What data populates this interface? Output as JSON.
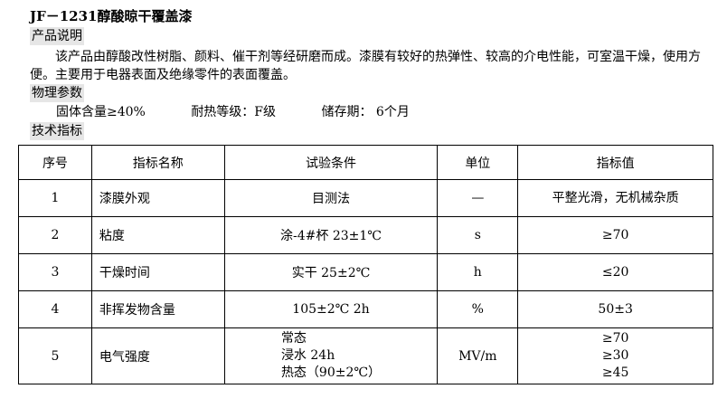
{
  "title": "JF－1231醇酸晾干覆盖漆",
  "sections": {
    "description": "产品说明",
    "physical": "物理参数",
    "technical": "技术指标"
  },
  "description_text": "该产品由醇酸改性树脂、颜料、催干剂等经研磨而成。漆膜有较好的热弹性、较高的介电性能，可室温干燥，使用方便。主要用于电器表面及绝缘零件的表面覆盖。",
  "physical_params": [
    "固体含量≥40%",
    "耐热等级：F级",
    "储存期： 6个月"
  ],
  "table": {
    "headers": [
      "序号",
      "指标名称",
      "试验条件",
      "单位",
      "指标值"
    ],
    "rows": [
      {
        "no": "1",
        "name": "漆膜外观",
        "cond": [
          "目测法"
        ],
        "unit": "—",
        "value": [
          "平整光滑，无机械杂质"
        ]
      },
      {
        "no": "2",
        "name": "粘度",
        "cond": [
          "涂-4#杯 23±1℃"
        ],
        "unit": "s",
        "value": [
          "≥70"
        ]
      },
      {
        "no": "3",
        "name": "干燥时间",
        "cond": [
          "实干 25±2℃"
        ],
        "unit": "h",
        "value": [
          "≤20"
        ]
      },
      {
        "no": "4",
        "name": "非挥发物含量",
        "cond": [
          "105±2℃ 2h"
        ],
        "unit": "%",
        "value": [
          "50±3"
        ]
      },
      {
        "no": "5",
        "name": "电气强度",
        "cond": [
          "常态",
          "浸水 24h",
          "热态（90±2℃）"
        ],
        "unit": "MV/m",
        "value": [
          "≥70",
          "≥30",
          "≥45"
        ]
      }
    ]
  }
}
